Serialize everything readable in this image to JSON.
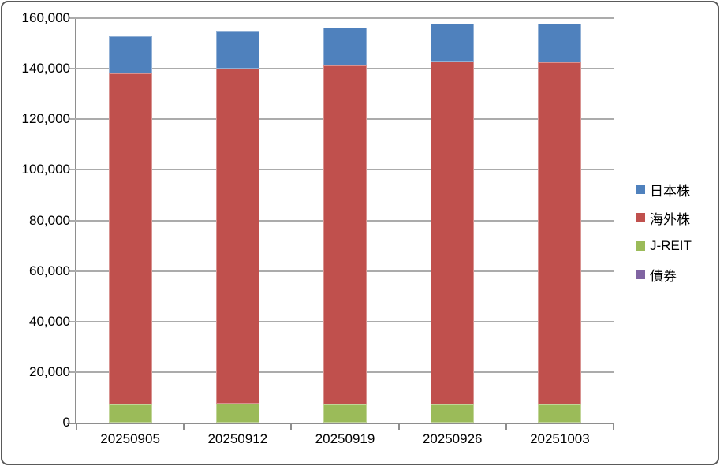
{
  "window": {
    "background": "#FFFFFF",
    "border_color": "#5A5A5A"
  },
  "chart_data": {
    "type": "bar",
    "stacked": true,
    "title": "",
    "xlabel": "",
    "ylabel": "",
    "categories": [
      "20250905",
      "20250912",
      "20250919",
      "20250926",
      "20251003"
    ],
    "series": [
      {
        "id": "japan-stocks",
        "name": "日本株",
        "color": "#4F81BD",
        "values": [
          14600,
          15200,
          15100,
          14900,
          15100
        ]
      },
      {
        "id": "overseas-stocks",
        "name": "海外株",
        "color": "#C0504D",
        "values": [
          131100,
          132500,
          134100,
          135700,
          135400
        ]
      },
      {
        "id": "j-reit",
        "name": "J-REIT",
        "color": "#9BBB59",
        "values": [
          7200,
          7400,
          7200,
          7300,
          7200
        ]
      },
      {
        "id": "bonds",
        "name": "債券",
        "color": "#8064A2",
        "values": [
          0,
          0,
          0,
          0,
          0
        ]
      }
    ],
    "stack_order_bottom_to_top": [
      "bonds",
      "j-reit",
      "overseas-stocks",
      "japan-stocks"
    ],
    "totals": [
      152900,
      155100,
      156400,
      157900,
      157700
    ],
    "ylim": [
      0,
      160000
    ],
    "ytick_interval": 20000,
    "ytick_labels": [
      "0",
      "20,000",
      "40,000",
      "60,000",
      "80,000",
      "100,000",
      "120,000",
      "140,000",
      "160,000"
    ],
    "grid": true,
    "legend_position": "right",
    "gridline_color": "#ABABAB",
    "axis_color": "#8E8E8E",
    "label_color": "#000000"
  }
}
